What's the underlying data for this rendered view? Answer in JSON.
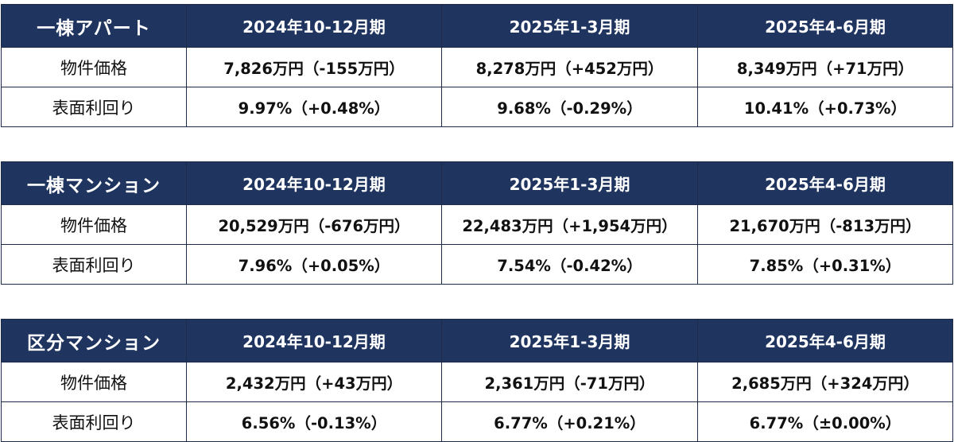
{
  "colors": {
    "header_bg": "#1f3560",
    "header_text": "#ffffff",
    "border": "#1e2a4a",
    "body_text": "#111111"
  },
  "tables": [
    {
      "category": "一棟アパート",
      "periods": [
        "2024年10-12月期",
        "2025年1-3月期",
        "2025年4-6月期"
      ],
      "rows": [
        {
          "label": "物件価格",
          "values": [
            "7,826万円（-155万円）",
            "8,278万円（+452万円）",
            "8,349万円（+71万円）"
          ]
        },
        {
          "label": "表面利回り",
          "values": [
            "9.97%（+0.48%）",
            "9.68%（-0.29%）",
            "10.41%（+0.73%）"
          ]
        }
      ]
    },
    {
      "category": "一棟マンション",
      "periods": [
        "2024年10-12月期",
        "2025年1-3月期",
        "2025年4-6月期"
      ],
      "rows": [
        {
          "label": "物件価格",
          "values": [
            "20,529万円（-676万円）",
            "22,483万円（+1,954万円）",
            "21,670万円（-813万円）"
          ]
        },
        {
          "label": "表面利回り",
          "values": [
            "7.96%（+0.05%）",
            "7.54%（-0.42%）",
            "7.85%（+0.31%）"
          ]
        }
      ]
    },
    {
      "category": "区分マンション",
      "periods": [
        "2024年10-12月期",
        "2025年1-3月期",
        "2025年4-6月期"
      ],
      "rows": [
        {
          "label": "物件価格",
          "values": [
            "2,432万円（+43万円）",
            "2,361万円（-71万円）",
            "2,685万円（+324万円）"
          ]
        },
        {
          "label": "表面利回り",
          "values": [
            "6.56%（-0.13%）",
            "6.77%（+0.21%）",
            "6.77%（±0.00%）"
          ]
        }
      ]
    }
  ]
}
